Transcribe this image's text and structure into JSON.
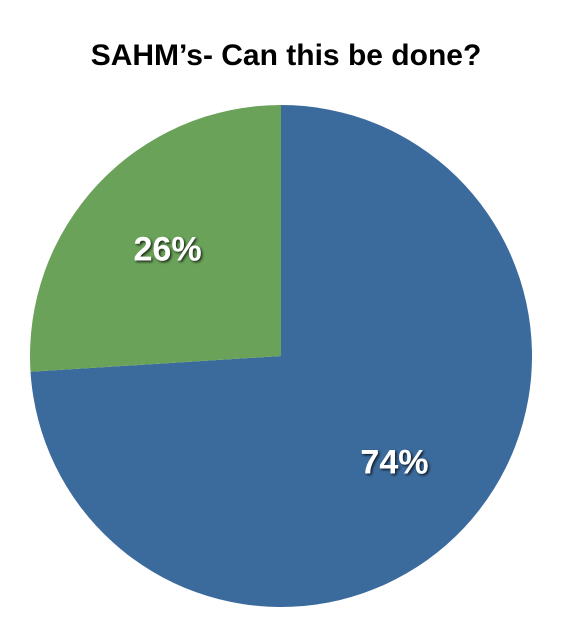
{
  "chart_data": {
    "type": "pie",
    "title": "SAHM’s- Can this be done?",
    "categories": [
      "",
      ""
    ],
    "values": [
      74,
      26
    ],
    "labels": [
      "74%",
      "26%"
    ],
    "colors": [
      "#3b6a9c",
      "#6aa259"
    ],
    "start": "12 o'clock, clockwise",
    "legend": "none"
  }
}
